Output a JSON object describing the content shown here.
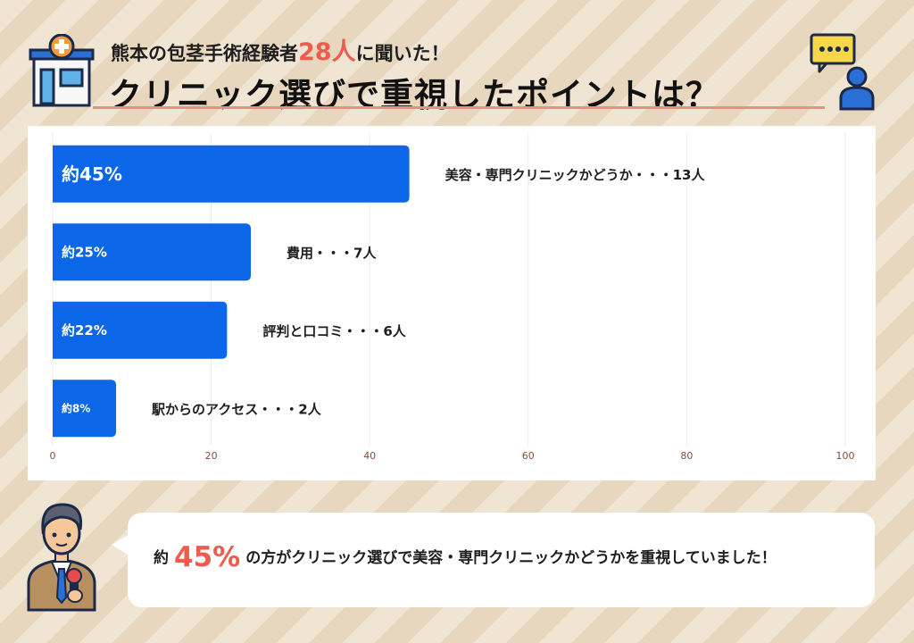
{
  "header": {
    "subtitle_prefix": "熊本の包茎手術経験者",
    "subtitle_count": "28人",
    "subtitle_suffix": "に聞いた！",
    "title": "クリニック選びで重視したポイントは？"
  },
  "colors": {
    "bar": "#0b67e8",
    "accent": "#ee5b4f",
    "axis_tick": "#8b4a3b",
    "grid": "#ededed"
  },
  "icons": {
    "header_left": "clinic-building-icon",
    "header_right": "chat-person-icon",
    "presenter": "reporter-man-icon"
  },
  "chart_data": {
    "type": "bar",
    "orientation": "horizontal",
    "xlim": [
      0,
      100
    ],
    "xticks": [
      0,
      20,
      40,
      60,
      80,
      100
    ],
    "grid": true,
    "bars": [
      {
        "value": 45,
        "inside_label": "約45%",
        "outside_label": "美容・専門クリニックかどうか・・・13人"
      },
      {
        "value": 25,
        "inside_label": "約25%",
        "outside_label": "費用・・・7人"
      },
      {
        "value": 22,
        "inside_label": "約22%",
        "outside_label": "評判と口コミ・・・6人"
      },
      {
        "value": 8,
        "inside_label": "約8%",
        "outside_label": "駅からのアクセス・・・2人"
      }
    ]
  },
  "summary": {
    "prefix": "約",
    "percent": "45%",
    "text": "の方がクリニック選びで美容・専門クリニックかどうかを重視していました！"
  }
}
